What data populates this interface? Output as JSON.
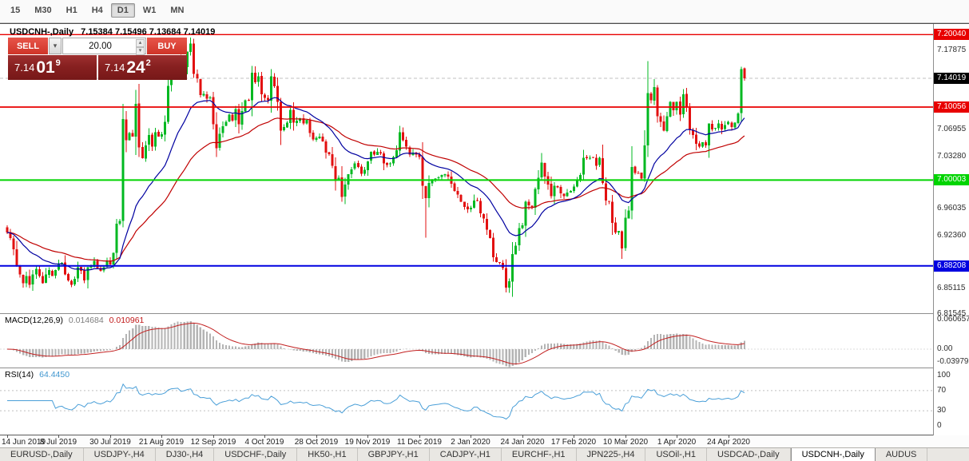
{
  "toolbar": {
    "timeframes": [
      "15",
      "M30",
      "H1",
      "H4",
      "D1",
      "W1",
      "MN"
    ],
    "active": "D1"
  },
  "chart": {
    "title_symbol": "USDCNH-,Daily",
    "title_ohlc": "7.15384 7.15496 7.13684 7.14019",
    "hlines": [
      {
        "price": 7.2004,
        "label": "7.20040",
        "color": "#e80000",
        "width": 1.4
      },
      {
        "price": 7.10056,
        "label": "7.10056",
        "color": "#e80000",
        "width": 1.8
      },
      {
        "price": 7.00003,
        "label": "7.00003",
        "color": "#00d400",
        "width": 2
      },
      {
        "price": 6.88208,
        "label": "6.88208",
        "color": "#0000e0",
        "width": 2
      }
    ],
    "current_price": {
      "value": 7.14019,
      "label": "7.14019",
      "color": "#000000"
    },
    "axis_labels": [
      "7.17875",
      "7.06955",
      "7.03280",
      "6.96035",
      "6.92360",
      "6.85115",
      "6.81545"
    ]
  },
  "trade_panel": {
    "sell_label": "SELL",
    "buy_label": "BUY",
    "volume": "20.00",
    "sell_price": {
      "main": "7.14",
      "pips": "01",
      "frac": "9"
    },
    "buy_price": {
      "main": "7.14",
      "pips": "24",
      "frac": "2"
    }
  },
  "chart_data": {
    "type": "candlestick",
    "symbol": "USDCNH",
    "period": "Daily",
    "bars_per_tick": 16,
    "x_tick_labels": [
      "14 Jun 2019",
      "8 Jul 2019",
      "30 Jul 2019",
      "21 Aug 2019",
      "12 Sep 2019",
      "4 Oct 2019",
      "28 Oct 2019",
      "19 Nov 2019",
      "11 Dec 2019",
      "2 Jan 2020",
      "24 Jan 2020",
      "17 Feb 2020",
      "10 Mar 2020",
      "1 Apr 2020",
      "24 Apr 2020"
    ],
    "closes": [
      6.928,
      6.92,
      6.905,
      6.882,
      6.87,
      6.858,
      6.868,
      6.856,
      6.87,
      6.878,
      6.868,
      6.858,
      6.87,
      6.876,
      6.868,
      6.876,
      6.884,
      6.886,
      6.87,
      6.862,
      6.856,
      6.864,
      6.88,
      6.875,
      6.862,
      6.88,
      6.881,
      6.889,
      6.879,
      6.875,
      6.88,
      6.889,
      6.884,
      6.9,
      6.94,
      6.944,
      7.084,
      7.055,
      7.065,
      7.06,
      7.105,
      7.045,
      7.03,
      7.048,
      7.062,
      7.046,
      7.066,
      7.06,
      7.063,
      7.08,
      7.13,
      7.155,
      7.163,
      7.168,
      7.145,
      7.156,
      7.177,
      7.188,
      7.146,
      7.14,
      7.117,
      7.119,
      7.112,
      7.114,
      7.077,
      7.044,
      7.064,
      7.074,
      7.08,
      7.09,
      7.082,
      7.098,
      7.077,
      7.095,
      7.11,
      7.11,
      7.148,
      7.135,
      7.143,
      7.118,
      7.113,
      7.11,
      7.143,
      7.129,
      7.108,
      7.068,
      7.073,
      7.079,
      7.097,
      7.079,
      7.082,
      7.085,
      7.078,
      7.083,
      7.065,
      7.056,
      7.058,
      7.06,
      7.053,
      7.038,
      7.036,
      7.02,
      6.999,
      7.003,
      6.977,
      6.994,
      7.008,
      7.015,
      7.023,
      7.018,
      7.009,
      7.014,
      7.026,
      7.039,
      7.035,
      7.039,
      7.037,
      7.023,
      7.021,
      7.023,
      7.032,
      7.041,
      7.066,
      7.055,
      7.046,
      7.035,
      7.038,
      7.035,
      7.032,
      6.992,
      6.975,
      6.996,
      7.0,
      7.002,
      7.004,
      7.007,
      7.008,
      7.005,
      6.995,
      6.985,
      6.98,
      6.97,
      6.963,
      6.96,
      6.962,
      6.972,
      6.972,
      6.954,
      6.947,
      6.932,
      6.92,
      6.894,
      6.887,
      6.886,
      6.879,
      6.852,
      6.861,
      6.898,
      6.91,
      6.934,
      6.938,
      6.97,
      6.965,
      6.963,
      6.988,
      7.003,
      7.024,
      7.005,
      6.994,
      6.978,
      6.992,
      6.99,
      6.982,
      6.978,
      6.983,
      6.985,
      6.991,
      7.001,
      7.007,
      7.031,
      7.03,
      7.031,
      7.031,
      7.02,
      7.031,
      6.996,
      6.972,
      6.97,
      6.941,
      6.928,
      6.93,
      6.906,
      6.948,
      6.958,
      7.018,
      7.01,
      7.01,
      7.002,
      7.048,
      7.12,
      7.11,
      7.128,
      7.088,
      7.08,
      7.068,
      7.088,
      7.108,
      7.096,
      7.108,
      7.09,
      7.118,
      7.1,
      7.07,
      7.062,
      7.05,
      7.046,
      7.052,
      7.048,
      7.078,
      7.07,
      7.072,
      7.078,
      7.07,
      7.076,
      7.08,
      7.073,
      7.079,
      7.092,
      7.153,
      7.14019
    ],
    "overrides": {
      "36": {
        "l": 6.935
      },
      "57": {
        "h": 7.1965
      },
      "130": {
        "l": 6.921
      },
      "155": {
        "l": 6.8452
      },
      "199": {
        "h": 7.164
      },
      "228": {
        "h": 7.156
      },
      "229": {
        "o": 7.15384,
        "h": 7.15496,
        "l": 7.13684
      }
    },
    "colors": {
      "up": "#00b821",
      "down": "#e21010",
      "ma_fast": "#0000a0",
      "ma_slow": "#c00000",
      "macd_hist": "#b4b4b4",
      "macd_signal": "#c22020",
      "rsi_line": "#4a9fd8"
    },
    "indicators": {
      "macd": {
        "name": "MACD(12,26,9)",
        "value_main": "0.014684",
        "value_signal": "0.010961",
        "axis_labels": [
          {
            "value": 0.060657,
            "label": "0.060657"
          },
          {
            "value": 0.0,
            "label": "0.00"
          },
          {
            "value": -0.039792,
            "label": "-0.039792"
          }
        ]
      },
      "rsi": {
        "name": "RSI(14)",
        "value": "64.4450",
        "levels": [
          70,
          30
        ],
        "axis_labels": [
          {
            "value": 100,
            "label": "100"
          },
          {
            "value": 70,
            "label": "70"
          },
          {
            "value": 30,
            "label": "30"
          },
          {
            "value": 0,
            "label": "0"
          }
        ]
      }
    }
  },
  "bottom_tabs": {
    "items": [
      "EURUSD-,Daily",
      "USDJPY-,H4",
      "DJ30-,H4",
      "USDCHF-,Daily",
      "HK50-,H1",
      "GBPJPY-,H1",
      "CADJPY-,H1",
      "EURCHF-,H1",
      "JPN225-,H4",
      "USOil-,H1",
      "USDCAD-,Daily",
      "USDCNH-,Daily",
      "AUDUS"
    ],
    "active_index": 11
  }
}
